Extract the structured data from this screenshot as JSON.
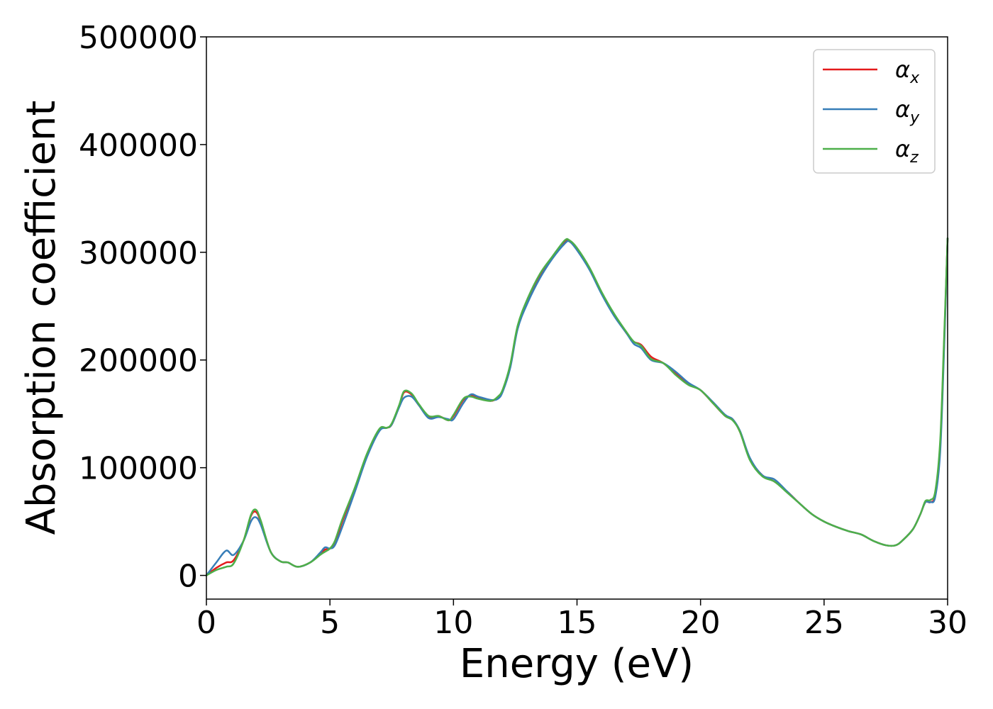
{
  "chart_data": {
    "type": "line",
    "title": "",
    "xlabel": "Energy (eV)",
    "ylabel": "Absorption coefficient",
    "xlim": [
      0,
      30
    ],
    "ylim": [
      -22000,
      500000
    ],
    "xticks": [
      0,
      5,
      10,
      15,
      20,
      25,
      30
    ],
    "xtick_labels": [
      "0",
      "5",
      "10",
      "15",
      "20",
      "25",
      "30"
    ],
    "yticks": [
      0,
      100000,
      200000,
      300000,
      400000,
      500000
    ],
    "ytick_labels": [
      "0",
      "100000",
      "200000",
      "300000",
      "400000",
      "500000"
    ],
    "grid": false,
    "legend_position": "top-right",
    "series": [
      {
        "name": "αx",
        "symbol": "α",
        "subscript": "x",
        "color": "#e41a1c",
        "x": [
          0,
          0.4,
          0.8,
          1.1,
          1.5,
          1.8,
          2.0,
          2.2,
          2.6,
          3.0,
          3.3,
          3.7,
          4.2,
          4.6,
          4.8,
          5.0,
          5.2,
          5.5,
          6.0,
          6.5,
          7.0,
          7.3,
          7.5,
          7.8,
          8.0,
          8.3,
          8.6,
          9.0,
          9.4,
          9.8,
          10.0,
          10.4,
          10.7,
          11.0,
          11.5,
          11.8,
          12.0,
          12.3,
          12.6,
          13.0,
          13.5,
          14.0,
          14.5,
          14.7,
          15.0,
          15.5,
          16.0,
          16.5,
          17.0,
          17.3,
          17.6,
          18.0,
          18.5,
          19.0,
          19.5,
          20.0,
          20.5,
          21.0,
          21.3,
          21.6,
          22.0,
          22.5,
          23.0,
          23.5,
          24.0,
          24.5,
          25.0,
          25.5,
          26.0,
          26.5,
          27.0,
          27.5,
          27.9,
          28.2,
          28.6,
          28.9,
          29.1,
          29.3,
          29.5,
          29.7,
          29.85,
          30.0
        ],
        "y": [
          0,
          7000,
          12000,
          14000,
          32000,
          55000,
          59000,
          50000,
          22000,
          13000,
          12000,
          8000,
          12000,
          20000,
          24000,
          25000,
          30000,
          50000,
          80000,
          112000,
          135000,
          137000,
          140000,
          157000,
          170000,
          168000,
          158000,
          147000,
          148000,
          144000,
          148000,
          163000,
          167000,
          165000,
          162000,
          165000,
          172000,
          195000,
          230000,
          255000,
          278000,
          295000,
          310000,
          310000,
          303000,
          285000,
          262000,
          242000,
          225000,
          217000,
          214000,
          203000,
          197000,
          187000,
          178000,
          172000,
          160000,
          148000,
          145000,
          133000,
          108000,
          93000,
          87000,
          78000,
          67000,
          57000,
          50000,
          45000,
          41000,
          38000,
          32000,
          28000,
          28000,
          33000,
          43000,
          57000,
          68000,
          68000,
          75000,
          120000,
          210000,
          313000
        ]
      },
      {
        "name": "αy",
        "symbol": "α",
        "subscript": "y",
        "color": "#377eb8",
        "x": [
          0,
          0.4,
          0.8,
          1.1,
          1.5,
          1.8,
          2.0,
          2.2,
          2.6,
          3.0,
          3.3,
          3.7,
          4.2,
          4.6,
          4.8,
          5.0,
          5.2,
          5.5,
          6.0,
          6.5,
          7.0,
          7.3,
          7.5,
          7.8,
          8.0,
          8.3,
          8.6,
          9.0,
          9.4,
          9.8,
          10.0,
          10.4,
          10.7,
          11.0,
          11.5,
          11.8,
          12.0,
          12.3,
          12.6,
          13.0,
          13.5,
          14.0,
          14.5,
          14.7,
          15.0,
          15.5,
          16.0,
          16.5,
          17.0,
          17.3,
          17.6,
          18.0,
          18.5,
          19.0,
          19.5,
          20.0,
          20.5,
          21.0,
          21.3,
          21.6,
          22.0,
          22.5,
          23.0,
          23.5,
          24.0,
          24.5,
          25.0,
          25.5,
          26.0,
          26.5,
          27.0,
          27.5,
          27.9,
          28.2,
          28.6,
          28.9,
          29.1,
          29.3,
          29.5,
          29.7,
          29.85,
          30.0
        ],
        "y": [
          0,
          12000,
          23000,
          19000,
          32000,
          50000,
          54000,
          47000,
          22000,
          13000,
          12000,
          8000,
          12000,
          21000,
          26000,
          25000,
          28000,
          45000,
          77000,
          110000,
          134000,
          137000,
          140000,
          156000,
          165000,
          166000,
          158000,
          146000,
          147000,
          145000,
          145000,
          160000,
          168000,
          166000,
          163000,
          164000,
          171000,
          193000,
          229000,
          253000,
          276000,
          294000,
          308000,
          310000,
          302000,
          284000,
          261000,
          241000,
          225000,
          215000,
          211000,
          200000,
          197000,
          189000,
          179000,
          172000,
          161000,
          149000,
          145000,
          134000,
          109000,
          93000,
          89000,
          78000,
          67000,
          57000,
          50000,
          45000,
          41000,
          38000,
          32000,
          28000,
          28000,
          33000,
          43000,
          57000,
          68000,
          68000,
          73000,
          115000,
          205000,
          313000
        ]
      },
      {
        "name": "αz",
        "symbol": "α",
        "subscript": "z",
        "color": "#4daf4a",
        "x": [
          0,
          0.4,
          0.8,
          1.1,
          1.5,
          1.8,
          2.0,
          2.2,
          2.6,
          3.0,
          3.3,
          3.7,
          4.2,
          4.6,
          4.8,
          5.0,
          5.2,
          5.5,
          6.0,
          6.5,
          7.0,
          7.3,
          7.5,
          7.8,
          8.0,
          8.3,
          8.6,
          9.0,
          9.4,
          9.8,
          10.0,
          10.4,
          10.7,
          11.0,
          11.5,
          11.8,
          12.0,
          12.3,
          12.6,
          13.0,
          13.5,
          14.0,
          14.5,
          14.7,
          15.0,
          15.5,
          16.0,
          16.5,
          17.0,
          17.3,
          17.6,
          18.0,
          18.5,
          19.0,
          19.5,
          20.0,
          20.5,
          21.0,
          21.3,
          21.6,
          22.0,
          22.5,
          23.0,
          23.5,
          24.0,
          24.5,
          25.0,
          25.5,
          26.0,
          26.5,
          27.0,
          27.5,
          27.9,
          28.2,
          28.6,
          28.9,
          29.1,
          29.3,
          29.5,
          29.7,
          29.85,
          30.0
        ],
        "y": [
          0,
          5000,
          8000,
          11000,
          32000,
          56000,
          61000,
          51000,
          22000,
          13000,
          12000,
          8000,
          12000,
          19000,
          22000,
          25000,
          32000,
          52000,
          81000,
          113000,
          136000,
          137000,
          141000,
          158000,
          171000,
          169000,
          159000,
          148000,
          148000,
          144000,
          149000,
          164000,
          166000,
          164000,
          162000,
          166000,
          173000,
          196000,
          232000,
          257000,
          280000,
          296000,
          311000,
          311000,
          304000,
          286000,
          263000,
          243000,
          226000,
          217000,
          213000,
          201000,
          197000,
          186000,
          177000,
          172000,
          160000,
          148000,
          144000,
          133000,
          107000,
          92000,
          87000,
          77000,
          67000,
          57000,
          50000,
          45000,
          41000,
          38000,
          32000,
          28000,
          28000,
          33000,
          43000,
          57000,
          69000,
          70000,
          78000,
          125000,
          215000,
          313000
        ]
      }
    ]
  }
}
